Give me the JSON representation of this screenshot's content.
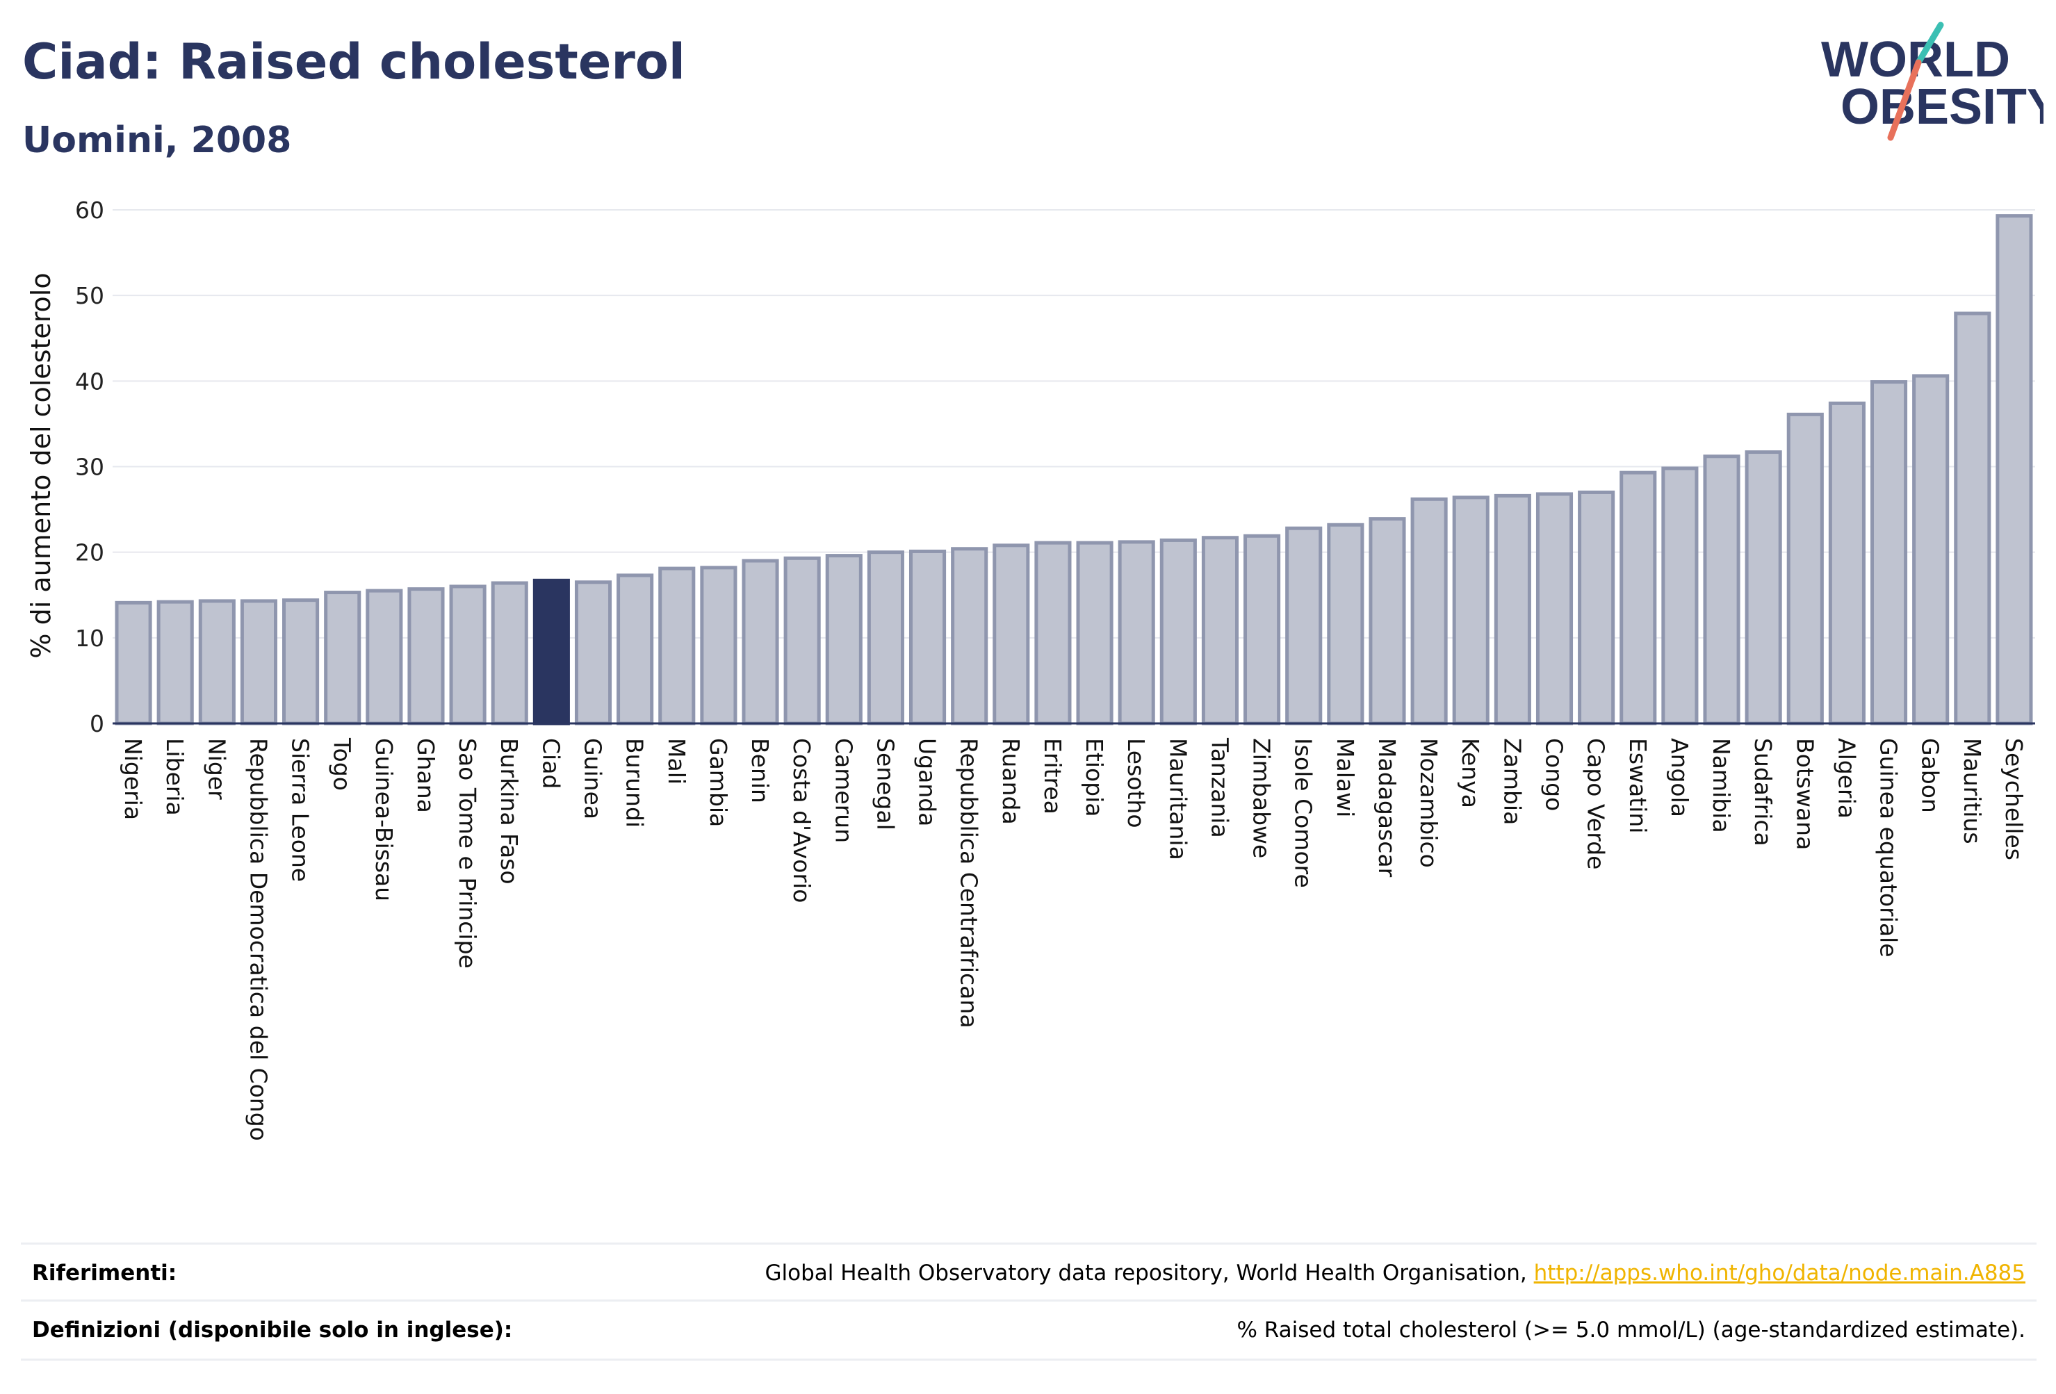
{
  "header": {
    "title": "Ciad: Raised cholesterol",
    "subtitle": "Uomini, 2008"
  },
  "logo": {
    "line1": "WORLD",
    "line2": "OBESITY",
    "colors": {
      "text": "#2a3560",
      "teal": "#3bbfb3",
      "coral": "#e8715b"
    }
  },
  "chart_data": {
    "type": "bar",
    "ylabel": "% di aumento del colesterolo",
    "xlabel": "",
    "ylim": [
      0,
      60
    ],
    "yticks": [
      0,
      10,
      20,
      30,
      40,
      50,
      60
    ],
    "grid": true,
    "highlight": "Ciad",
    "colors": {
      "bar": "#bfc3d0",
      "bar_border": "#8f96ae",
      "highlight": "#2a3560"
    },
    "categories": [
      "Nigeria",
      "Liberia",
      "Niger",
      "Repubblica Democratica del Congo",
      "Sierra Leone",
      "Togo",
      "Guinea-Bissau",
      "Ghana",
      "Sao Tome e Principe",
      "Burkina Faso",
      "Ciad",
      "Guinea",
      "Burundi",
      "Mali",
      "Gambia",
      "Benin",
      "Costa d'Avorio",
      "Camerun",
      "Senegal",
      "Uganda",
      "Repubblica Centrafricana",
      "Ruanda",
      "Eritrea",
      "Etiopia",
      "Lesotho",
      "Mauritania",
      "Tanzania",
      "Zimbabwe",
      "Isole Comore",
      "Malawi",
      "Madagascar",
      "Mozambico",
      "Kenya",
      "Zambia",
      "Congo",
      "Capo Verde",
      "Eswatini",
      "Angola",
      "Namibia",
      "Sudafrica",
      "Botswana",
      "Algeria",
      "Guinea equatoriale",
      "Gabon",
      "Mauritius",
      "Seychelles"
    ],
    "values": [
      14.1,
      14.2,
      14.3,
      14.3,
      14.4,
      15.3,
      15.5,
      15.7,
      16.0,
      16.4,
      16.7,
      16.5,
      17.3,
      18.1,
      18.2,
      19.0,
      19.3,
      19.6,
      20.0,
      20.1,
      20.4,
      20.8,
      21.1,
      21.1,
      21.2,
      21.4,
      21.7,
      21.9,
      22.8,
      23.2,
      23.9,
      26.2,
      26.4,
      26.6,
      26.8,
      27.0,
      29.3,
      29.8,
      31.2,
      31.7,
      36.1,
      37.4,
      39.9,
      40.6,
      47.9,
      59.3
    ]
  },
  "footer": {
    "references_label": "Riferimenti:",
    "references_text": "Global Health Observatory data repository, World Health Organisation, ",
    "references_link": "http://apps.who.int/gho/data/node.main.A885",
    "definitions_label": "Definizioni (disponibile solo in inglese):",
    "definitions_text": "% Raised total cholesterol (>= 5.0 mmol/L) (age-standardized estimate)."
  }
}
